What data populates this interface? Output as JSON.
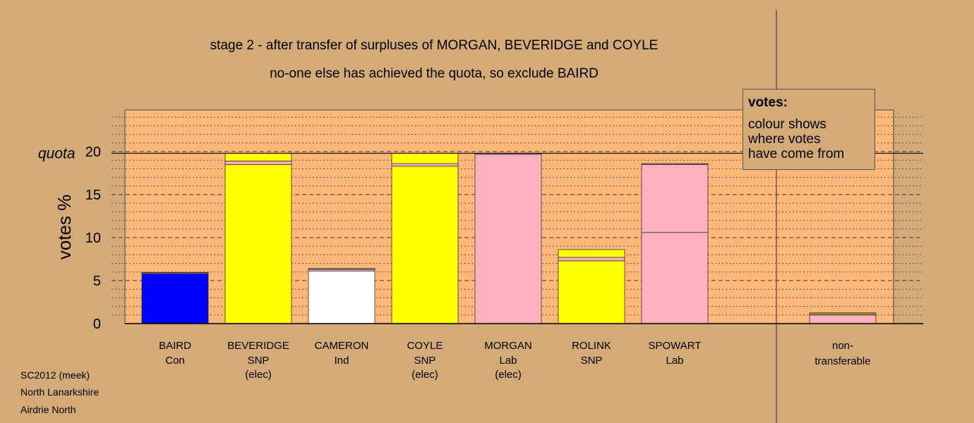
{
  "chart_data": {
    "type": "bar",
    "stacked": true,
    "title": "stage 2 - after transfer of surpluses of MORGAN, BEVERIDGE and COYLE",
    "subtitle": "no-one else has achieved the quota, so exclude BAIRD",
    "ylabel": "votes %",
    "ylim": [
      0,
      24
    ],
    "yticks": [
      0,
      5,
      10,
      15,
      20
    ],
    "quota_label": "quota",
    "quota": 19.8,
    "grid": true,
    "legend": {
      "title": "votes:",
      "lines": [
        "colour shows",
        "where votes",
        "have come from"
      ],
      "placement": "top-right"
    },
    "colors": {
      "Con": "#0000ff",
      "SNP": "#ffff00",
      "Ind": "#ffffff",
      "Lab": "#ffb0c0",
      "Other": "#a08a2a",
      "Brown": "#9a6a4a"
    },
    "categories": [
      {
        "name": "BAIRD",
        "party": "Con",
        "note": "",
        "segments": [
          {
            "from": "Con",
            "value": 5.8
          },
          {
            "from": "Lab",
            "value": 0.1
          },
          {
            "from": "Brown",
            "value": 0.05
          }
        ]
      },
      {
        "name": "BEVERIDGE",
        "party": "SNP",
        "note": "(elec)",
        "segments": [
          {
            "from": "SNP",
            "value": 18.5
          },
          {
            "from": "Lab",
            "value": 0.4
          },
          {
            "from": "SNP",
            "value": 0.9
          }
        ]
      },
      {
        "name": "CAMERON",
        "party": "Ind",
        "note": "",
        "segments": [
          {
            "from": "Ind",
            "value": 6.1
          },
          {
            "from": "Lab",
            "value": 0.2
          },
          {
            "from": "Brown",
            "value": 0.1
          }
        ]
      },
      {
        "name": "COYLE",
        "party": "SNP",
        "note": "(elec)",
        "segments": [
          {
            "from": "SNP",
            "value": 18.3
          },
          {
            "from": "Lab",
            "value": 0.3
          },
          {
            "from": "SNP",
            "value": 1.2
          }
        ]
      },
      {
        "name": "MORGAN",
        "party": "Lab",
        "note": "(elec)",
        "segments": [
          {
            "from": "Lab",
            "value": 19.7
          },
          {
            "from": "Brown",
            "value": 0.1
          }
        ]
      },
      {
        "name": "ROLINK",
        "party": "SNP",
        "note": "",
        "segments": [
          {
            "from": "SNP",
            "value": 7.3
          },
          {
            "from": "Lab",
            "value": 0.4
          },
          {
            "from": "SNP",
            "value": 0.9
          }
        ]
      },
      {
        "name": "SPOWART",
        "party": "Lab",
        "note": "",
        "segments": [
          {
            "from": "Lab",
            "value": 10.6
          },
          {
            "from": "Lab",
            "value": 7.9
          },
          {
            "from": "Brown",
            "value": 0.1
          }
        ]
      }
    ],
    "non_transferable": {
      "label": "non-",
      "label2": "transferable",
      "segments": [
        {
          "from": "Lab",
          "value": 1.0
        },
        {
          "from": "Other",
          "value": 0.25
        }
      ]
    }
  },
  "footer": {
    "line1": "SC2012 (meek)",
    "line2": "North Lanarkshire",
    "line3": "Airdrie North"
  }
}
